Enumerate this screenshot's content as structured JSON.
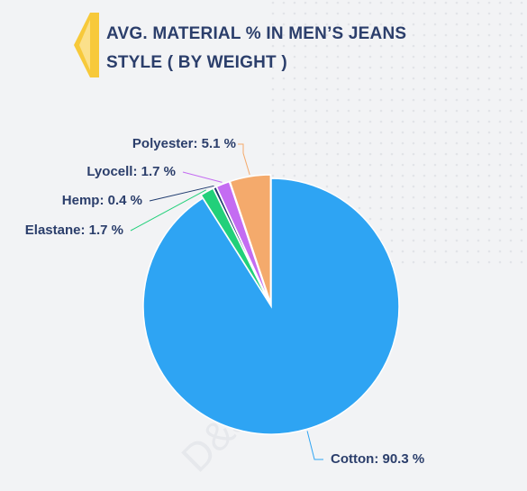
{
  "chart_data": {
    "type": "pie",
    "title": "AVG. MATERIAL % IN MEN’S JEANS STYLE ( BY WEIGHT )",
    "watermark": "D&J Reports",
    "categories": [
      "Cotton",
      "Elastane",
      "Hemp",
      "Lyocell",
      "Polyester"
    ],
    "values": [
      90.3,
      1.7,
      0.4,
      1.7,
      5.1
    ],
    "value_labels": [
      "90.3 %",
      "1.7 %",
      "0.4 %",
      "1.7 %",
      "5.1 %"
    ],
    "label_separator": ": ",
    "colors": [
      "#2ea4f3",
      "#22d07a",
      "#1e3a6e",
      "#c46cf2",
      "#f4aa6c"
    ]
  }
}
